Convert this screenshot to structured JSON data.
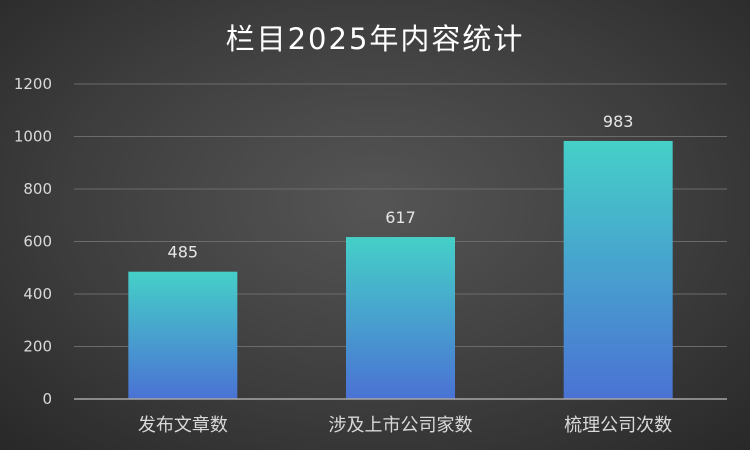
{
  "chart_data": {
    "type": "bar",
    "title": "栏目2025年内容统计",
    "categories": [
      "发布文章数",
      "涉及上市公司家数",
      "梳理公司次数"
    ],
    "values": [
      485,
      617,
      983
    ],
    "xlabel": "",
    "ylabel": "",
    "ylim": [
      0,
      1200
    ],
    "yticks": [
      0,
      200,
      400,
      600,
      800,
      1000,
      1200
    ],
    "grid": true,
    "legend": "none",
    "data_labels": true,
    "colors": {
      "bar_top": "#45d0c8",
      "bar_bottom": "#4a72d4",
      "background": "#3d3d3d",
      "text": "#ffffff"
    }
  }
}
